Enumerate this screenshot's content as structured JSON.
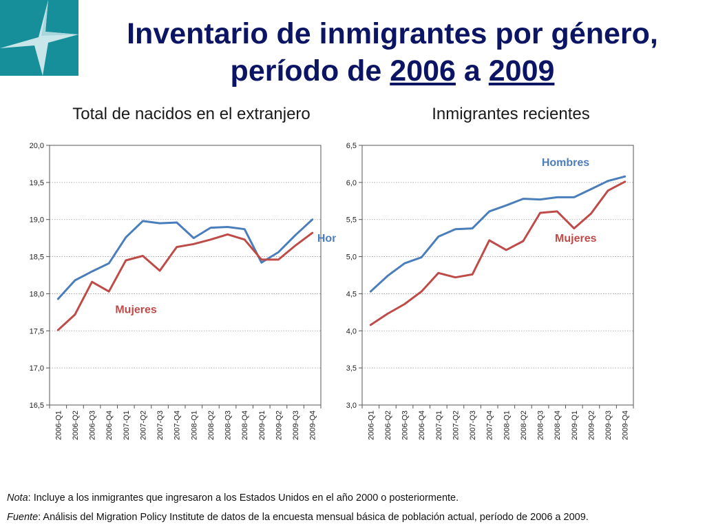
{
  "title": {
    "line1": "Inventario de inmigrantes por género,",
    "line2_prefix": "período de ",
    "year_start": "2006",
    "line2_mid": " a ",
    "year_end": "2009"
  },
  "logo": {
    "icon": "star-logo-icon",
    "bg_color": "#178f9a",
    "fg_color": "#c8e6ea"
  },
  "footnotes": {
    "note_label": "Nota",
    "note_text": ": Incluye a los inmigrantes que ingresaron a los Estados Unidos en el año 2000 o posteriormente.",
    "source_label": "Fuente",
    "source_text": ": Análisis del Migration Policy Institute de datos de la encuesta mensual básica de población actual, período de 2006 a 2009."
  },
  "chart_data": [
    {
      "type": "line",
      "title": "Total de nacidos en el extranjero",
      "categories": [
        "2006-Q1",
        "2006-Q2",
        "2006-Q3",
        "2006-Q4",
        "2007-Q1",
        "2007-Q2",
        "2007-Q3",
        "2007-Q4",
        "2008-Q1",
        "2008-Q2",
        "2008-Q3",
        "2008-Q4",
        "2009-Q1",
        "2009-Q2",
        "2009-Q3",
        "2009-Q4"
      ],
      "ylim": [
        16.5,
        20.0
      ],
      "ytick_step": 0.5,
      "ytick_labels": [
        "16,5",
        "17,0",
        "17,5",
        "18,0",
        "18,5",
        "19,0",
        "19,5",
        "20,0"
      ],
      "grid": true,
      "series": [
        {
          "name": "Hombres",
          "color": "#4a7ebb",
          "values": [
            17.93,
            18.18,
            18.3,
            18.41,
            18.76,
            18.98,
            18.95,
            18.96,
            18.75,
            18.89,
            18.9,
            18.87,
            18.42,
            18.56,
            18.79,
            19.0
          ],
          "label_at": [
            17.2,
            18.7
          ]
        },
        {
          "name": "Mujeres",
          "color": "#be4b48",
          "values": [
            17.51,
            17.72,
            18.16,
            18.03,
            18.45,
            18.51,
            18.31,
            18.63,
            18.67,
            18.73,
            18.8,
            18.73,
            18.46,
            18.46,
            18.65,
            18.82
          ],
          "label_at": [
            5.1,
            17.74
          ]
        }
      ]
    },
    {
      "type": "line",
      "title": "Inmigrantes recientes",
      "categories": [
        "2006-Q1",
        "2006-Q2",
        "2006-Q3",
        "2006-Q4",
        "2007-Q1",
        "2007-Q2",
        "2007-Q3",
        "2007-Q4",
        "2008-Q1",
        "2008-Q2",
        "2008-Q3",
        "2008-Q4",
        "2009-Q1",
        "2009-Q2",
        "2009-Q3",
        "2009-Q4"
      ],
      "ylim": [
        3.0,
        6.5
      ],
      "ytick_step": 0.5,
      "ytick_labels": [
        "3,0",
        "3,5",
        "4,0",
        "4,5",
        "5,0",
        "5,5",
        "6,0",
        "6,5"
      ],
      "grid": true,
      "series": [
        {
          "name": "Hombres",
          "color": "#4a7ebb",
          "values": [
            4.53,
            4.74,
            4.91,
            4.99,
            5.27,
            5.37,
            5.38,
            5.61,
            5.69,
            5.78,
            5.77,
            5.8,
            5.8,
            5.91,
            6.02,
            6.08
          ],
          "label_at": [
            12.0,
            6.22
          ]
        },
        {
          "name": "Mujeres",
          "color": "#be4b48",
          "values": [
            4.08,
            4.23,
            4.36,
            4.53,
            4.78,
            4.72,
            4.76,
            5.22,
            5.09,
            5.21,
            5.59,
            5.61,
            5.38,
            5.58,
            5.89,
            6.01
          ],
          "label_at": [
            12.6,
            5.2
          ]
        }
      ]
    }
  ]
}
